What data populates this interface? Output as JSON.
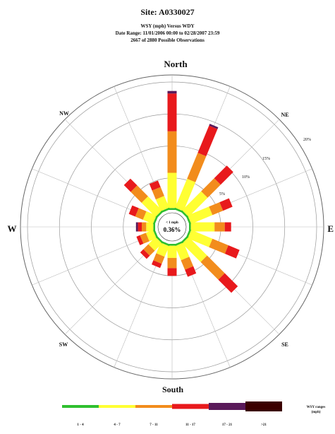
{
  "header": {
    "site": "Site: A0330027",
    "subtitle": "WSY (mph) Versus WDY",
    "date_range": "Date Range: 11/01/2006 00:00 to 02/28/2007 23:59",
    "observations": "2667 of 2880 Possible Observations"
  },
  "chart_data": {
    "type": "wind-rose",
    "directions": {
      "north": "North",
      "south": "South",
      "east": "E",
      "west": "W",
      "ne": "NE",
      "nw": "NW",
      "se": "SE",
      "sw": "SW"
    },
    "ring_labels": [
      "5%",
      "10%",
      "15%",
      "20%"
    ],
    "ring_values": [
      5,
      10,
      15,
      20
    ],
    "max_ring": 20,
    "calm": {
      "label": "< 1 mph",
      "value": "0.36%"
    },
    "bins": [
      {
        "label": "1 - 4",
        "color": "#2fbf2f"
      },
      {
        "label": "4 - 7",
        "color": "#ffff33"
      },
      {
        "label": "7 - 11",
        "color": "#f28c1c"
      },
      {
        "label": "11 - 17",
        "color": "#e8191c"
      },
      {
        "label": "17 - 21",
        "color": "#5a1a5a"
      },
      {
        "label": ">21",
        "color": "#3b0000"
      }
    ],
    "legend_title": "WSY ranges",
    "legend_unit": "(mph)",
    "sectors": [
      {
        "angle": 0,
        "cum": [
          0.3,
          5.8,
          12.3,
          18.2,
          18.6
        ]
      },
      {
        "angle": 22.5,
        "cum": [
          0.3,
          5.2,
          9.6,
          14.2,
          14.5
        ]
      },
      {
        "angle": 45,
        "cum": [
          0.3,
          4.5,
          7.4,
          10.2
        ]
      },
      {
        "angle": 67.5,
        "cum": [
          0.3,
          3.9,
          5.7,
          7.3
        ]
      },
      {
        "angle": 90,
        "cum": [
          0.3,
          4.0,
          5.6,
          6.6
        ]
      },
      {
        "angle": 112.5,
        "cum": [
          0.3,
          3.9,
          6.6,
          8.5
        ]
      },
      {
        "angle": 135,
        "cum": [
          0.3,
          4.4,
          8.3,
          11.2
        ]
      },
      {
        "angle": 157.5,
        "cum": [
          0.3,
          2.7,
          4.3,
          5.5
        ]
      },
      {
        "angle": 180,
        "cum": [
          0.3,
          2.2,
          3.8,
          5.0
        ]
      },
      {
        "angle": 202.5,
        "cum": [
          0.3,
          2.1,
          3.3,
          4.0
        ]
      },
      {
        "angle": 225,
        "cum": [
          0.3,
          1.9,
          3.0,
          3.7
        ]
      },
      {
        "angle": 247.5,
        "cum": [
          0.3,
          1.5,
          2.5,
          3.1
        ]
      },
      {
        "angle": 270,
        "cum": [
          0.3,
          1.4,
          2.1,
          2.7,
          3.0
        ]
      },
      {
        "angle": 292.5,
        "cum": [
          0.3,
          2.0,
          3.3,
          4.4
        ]
      },
      {
        "angle": 315,
        "cum": [
          0.3,
          3.4,
          5.8,
          7.3
        ]
      },
      {
        "angle": 337.5,
        "cum": [
          0.3,
          2.3,
          3.8,
          4.9
        ]
      }
    ]
  }
}
